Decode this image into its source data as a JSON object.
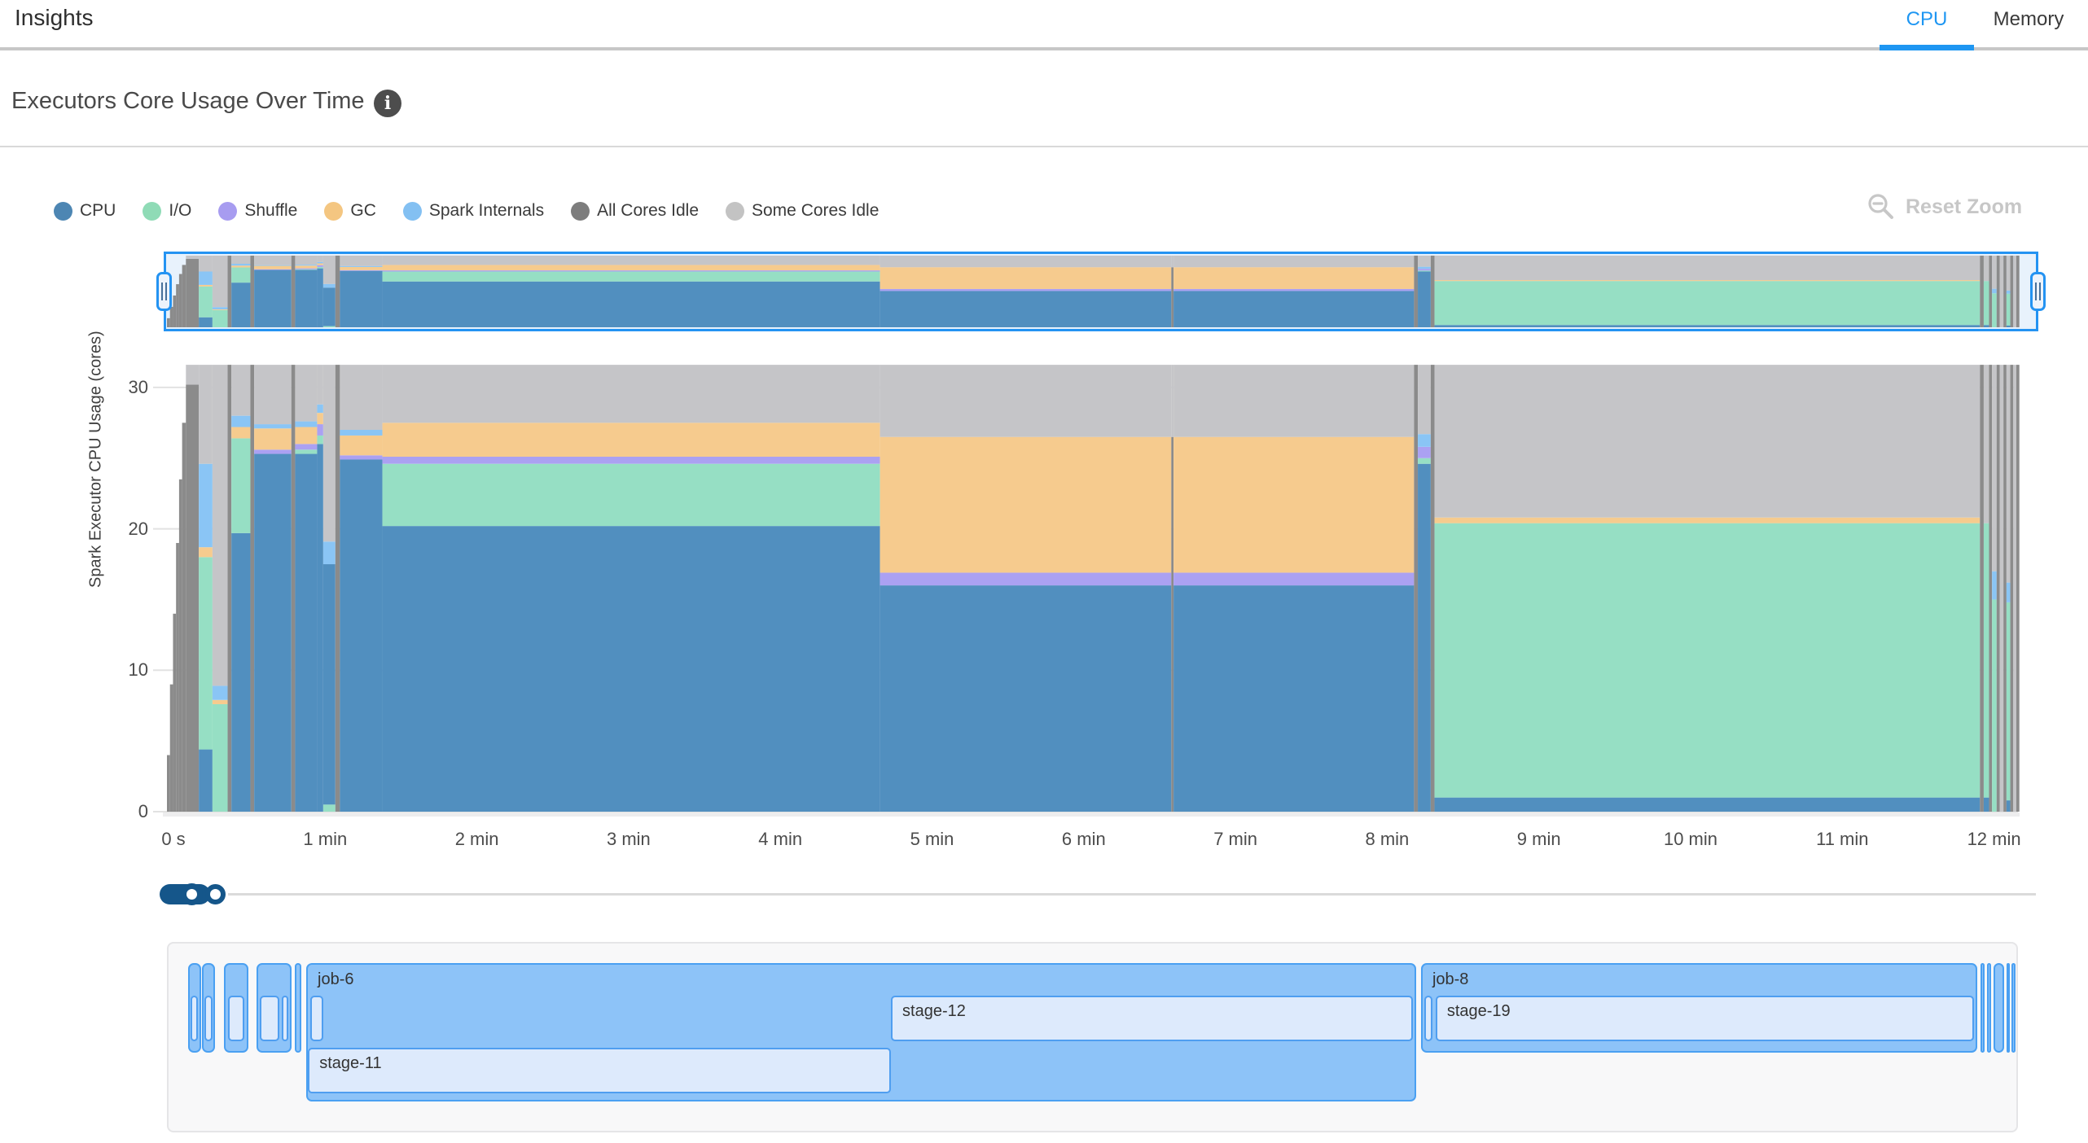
{
  "header": {
    "title": "Insights",
    "tabs": [
      {
        "label": "CPU",
        "active": true
      },
      {
        "label": "Memory",
        "active": false
      }
    ],
    "accent_color": "#1e96f2"
  },
  "section": {
    "title": "Executors Core Usage Over Time",
    "info_icon_glyph": "i"
  },
  "reset_zoom": {
    "label": "Reset Zoom",
    "color": "#c7c7c7",
    "icon": "zoom-out-icon"
  },
  "chart_data": {
    "type": "area",
    "stacked": true,
    "title": "Executors Core Usage Over Time",
    "xlabel": "",
    "ylabel": "Spark Executor CPU Usage (cores)",
    "yticks": [
      0,
      10,
      20,
      30
    ],
    "ylim": [
      0,
      32
    ],
    "x_unit": "minutes",
    "x_range_min": [
      0,
      12.21
    ],
    "grid": true,
    "legend_position": "top-left",
    "overview_brush_selection_min": [
      0,
      12.21
    ],
    "series": [
      {
        "key": "cpu",
        "label": "CPU",
        "color": "#4d86b3",
        "area_color": "#518fbf"
      },
      {
        "key": "io",
        "label": "I/O",
        "color": "#8fdbb6",
        "area_color": "#96dfc4"
      },
      {
        "key": "shuffle",
        "label": "Shuffle",
        "color": "#a79cf0",
        "area_color": "#aba1f2"
      },
      {
        "key": "gc",
        "label": "GC",
        "color": "#f4c681",
        "area_color": "#f6cb8e"
      },
      {
        "key": "si",
        "label": "Spark Internals",
        "color": "#83c0f2",
        "area_color": "#8ac5f5"
      },
      {
        "key": "allIdle",
        "label": "All Cores Idle",
        "color": "#7d7d7d",
        "area_color": "#8b8b8b"
      },
      {
        "key": "someIdle",
        "label": "Some Cores Idle",
        "color": "#c3c3c3",
        "area_color": "#c5c5c8"
      }
    ],
    "xticks": [
      {
        "t": 0,
        "label": "0 s"
      },
      {
        "t": 1,
        "label": "1 min"
      },
      {
        "t": 2,
        "label": "2 min"
      },
      {
        "t": 3,
        "label": "3 min"
      },
      {
        "t": 4,
        "label": "4 min"
      },
      {
        "t": 5,
        "label": "5 min"
      },
      {
        "t": 6,
        "label": "6 min"
      },
      {
        "t": 7,
        "label": "7 min"
      },
      {
        "t": 8,
        "label": "8 min"
      },
      {
        "t": 9,
        "label": "9 min"
      },
      {
        "t": 10,
        "label": "10 min"
      },
      {
        "t": 11,
        "label": "11 min"
      },
      {
        "t": 12,
        "label": "12 min"
      }
    ],
    "segments": [
      {
        "t0": 0.0,
        "t1": 0.02,
        "parts": [
          [
            "allIdle",
            4
          ]
        ]
      },
      {
        "t0": 0.02,
        "t1": 0.04,
        "parts": [
          [
            "allIdle",
            9
          ]
        ]
      },
      {
        "t0": 0.04,
        "t1": 0.06,
        "parts": [
          [
            "allIdle",
            14
          ]
        ]
      },
      {
        "t0": 0.06,
        "t1": 0.08,
        "parts": [
          [
            "allIdle",
            19
          ]
        ]
      },
      {
        "t0": 0.08,
        "t1": 0.1,
        "parts": [
          [
            "allIdle",
            23.5
          ]
        ]
      },
      {
        "t0": 0.1,
        "t1": 0.125,
        "parts": [
          [
            "allIdle",
            27.5
          ]
        ]
      },
      {
        "t0": 0.125,
        "t1": 0.21,
        "parts": [
          [
            "allIdle",
            30.2
          ],
          [
            "someIdle",
            1.4
          ]
        ]
      },
      {
        "t0": 0.21,
        "t1": 0.3,
        "parts": [
          [
            "cpu",
            4.4
          ],
          [
            "io",
            13.6
          ],
          [
            "gc",
            0.7
          ],
          [
            "si",
            5.9
          ],
          [
            "someIdle",
            7.0
          ]
        ]
      },
      {
        "t0": 0.3,
        "t1": 0.4,
        "parts": [
          [
            "io",
            7.6
          ],
          [
            "gc",
            0.3
          ],
          [
            "si",
            1.0
          ],
          [
            "someIdle",
            22.7
          ]
        ]
      },
      {
        "t0": 0.4,
        "t1": 0.425,
        "parts": [
          [
            "allIdle",
            31.6
          ]
        ]
      },
      {
        "t0": 0.425,
        "t1": 0.55,
        "parts": [
          [
            "cpu",
            19.7
          ],
          [
            "io",
            6.7
          ],
          [
            "gc",
            0.8
          ],
          [
            "si",
            0.8
          ],
          [
            "someIdle",
            3.6
          ]
        ]
      },
      {
        "t0": 0.55,
        "t1": 0.575,
        "parts": [
          [
            "allIdle",
            31.6
          ]
        ]
      },
      {
        "t0": 0.575,
        "t1": 0.82,
        "parts": [
          [
            "cpu",
            25.3
          ],
          [
            "shuffle",
            0.3
          ],
          [
            "gc",
            1.5
          ],
          [
            "si",
            0.3
          ],
          [
            "someIdle",
            4.2
          ]
        ]
      },
      {
        "t0": 0.82,
        "t1": 0.845,
        "parts": [
          [
            "allIdle",
            31.6
          ]
        ]
      },
      {
        "t0": 0.845,
        "t1": 0.99,
        "parts": [
          [
            "cpu",
            25.3
          ],
          [
            "io",
            0.3
          ],
          [
            "shuffle",
            0.4
          ],
          [
            "gc",
            1.2
          ],
          [
            "si",
            0.4
          ],
          [
            "someIdle",
            4.0
          ]
        ]
      },
      {
        "t0": 0.99,
        "t1": 1.03,
        "parts": [
          [
            "cpu",
            26.0
          ],
          [
            "io",
            0.6
          ],
          [
            "shuffle",
            0.8
          ],
          [
            "gc",
            0.8
          ],
          [
            "si",
            0.6
          ],
          [
            "someIdle",
            2.8
          ]
        ]
      },
      {
        "t0": 1.03,
        "t1": 1.11,
        "parts": [
          [
            "io",
            0.5
          ],
          [
            "cpu",
            17.0
          ],
          [
            "si",
            1.6
          ],
          [
            "someIdle",
            12.5
          ]
        ]
      },
      {
        "t0": 1.11,
        "t1": 1.14,
        "parts": [
          [
            "allIdle",
            31.6
          ]
        ]
      },
      {
        "t0": 1.14,
        "t1": 1.42,
        "parts": [
          [
            "cpu",
            24.9
          ],
          [
            "shuffle",
            0.3
          ],
          [
            "gc",
            1.4
          ],
          [
            "si",
            0.4
          ],
          [
            "someIdle",
            4.6
          ]
        ]
      },
      {
        "t0": 1.42,
        "t1": 4.7,
        "parts": [
          [
            "cpu",
            20.2
          ],
          [
            "io",
            4.4
          ],
          [
            "shuffle",
            0.5
          ],
          [
            "gc",
            2.4
          ],
          [
            "someIdle",
            4.1
          ]
        ]
      },
      {
        "t0": 4.7,
        "t1": 6.62,
        "parts": [
          [
            "cpu",
            16.0
          ],
          [
            "shuffle",
            0.9
          ],
          [
            "gc",
            9.6
          ],
          [
            "someIdle",
            5.1
          ]
        ]
      },
      {
        "t0": 6.62,
        "t1": 6.635,
        "parts": [
          [
            "allIdle",
            26.5
          ],
          [
            "someIdle",
            5.1
          ]
        ]
      },
      {
        "t0": 6.635,
        "t1": 8.22,
        "parts": [
          [
            "cpu",
            16.0
          ],
          [
            "shuffle",
            0.9
          ],
          [
            "gc",
            9.6
          ],
          [
            "someIdle",
            5.1
          ]
        ]
      },
      {
        "t0": 8.22,
        "t1": 8.245,
        "parts": [
          [
            "allIdle",
            31.6
          ]
        ]
      },
      {
        "t0": 8.245,
        "t1": 8.33,
        "parts": [
          [
            "cpu",
            24.6
          ],
          [
            "io",
            0.4
          ],
          [
            "shuffle",
            0.8
          ],
          [
            "si",
            0.9
          ],
          [
            "someIdle",
            4.9
          ]
        ]
      },
      {
        "t0": 8.33,
        "t1": 8.355,
        "parts": [
          [
            "allIdle",
            31.6
          ]
        ]
      },
      {
        "t0": 8.355,
        "t1": 11.95,
        "parts": [
          [
            "cpu",
            1.0
          ],
          [
            "io",
            19.4
          ],
          [
            "gc",
            0.4
          ],
          [
            "someIdle",
            10.8
          ]
        ]
      },
      {
        "t0": 11.95,
        "t1": 11.975,
        "parts": [
          [
            "allIdle",
            31.6
          ]
        ]
      },
      {
        "t0": 11.975,
        "t1": 12.01,
        "parts": [
          [
            "cpu",
            1.0
          ],
          [
            "io",
            19.4
          ],
          [
            "someIdle",
            11.2
          ]
        ]
      },
      {
        "t0": 12.01,
        "t1": 12.03,
        "parts": [
          [
            "allIdle",
            31.6
          ]
        ]
      },
      {
        "t0": 12.03,
        "t1": 12.06,
        "parts": [
          [
            "io",
            15.0
          ],
          [
            "si",
            2.0
          ],
          [
            "someIdle",
            14.6
          ]
        ]
      },
      {
        "t0": 12.06,
        "t1": 12.08,
        "parts": [
          [
            "allIdle",
            31.6
          ]
        ]
      },
      {
        "t0": 12.08,
        "t1": 12.105,
        "parts": [
          [
            "someIdle",
            31.6
          ]
        ]
      },
      {
        "t0": 12.105,
        "t1": 12.125,
        "parts": [
          [
            "allIdle",
            31.6
          ]
        ]
      },
      {
        "t0": 12.125,
        "t1": 12.15,
        "parts": [
          [
            "cpu",
            0.8
          ],
          [
            "io",
            14.0
          ],
          [
            "si",
            1.4
          ],
          [
            "someIdle",
            15.4
          ]
        ]
      },
      {
        "t0": 12.15,
        "t1": 12.17,
        "parts": [
          [
            "allIdle",
            31.6
          ]
        ]
      },
      {
        "t0": 12.17,
        "t1": 12.19,
        "parts": [
          [
            "someIdle",
            31.6
          ]
        ]
      },
      {
        "t0": 12.19,
        "t1": 12.21,
        "parts": [
          [
            "allIdle",
            31.6
          ]
        ]
      }
    ]
  },
  "timeline": {
    "jobs": [
      {
        "label": "",
        "t0": 0.14,
        "t1": 0.225,
        "tall": false,
        "stages": [
          {
            "label": "",
            "t0": 0.155,
            "t1": 0.205,
            "row": 1
          }
        ]
      },
      {
        "label": "",
        "t0": 0.231,
        "t1": 0.317,
        "tall": false,
        "stages": [
          {
            "label": "",
            "t0": 0.246,
            "t1": 0.3,
            "row": 1
          }
        ]
      },
      {
        "label": "",
        "t0": 0.376,
        "t1": 0.537,
        "tall": false,
        "stages": [
          {
            "label": "",
            "t0": 0.4,
            "t1": 0.51,
            "row": 1
          }
        ]
      },
      {
        "label": "",
        "t0": 0.59,
        "t1": 0.821,
        "tall": false,
        "stages": [
          {
            "label": "",
            "t0": 0.61,
            "t1": 0.74,
            "row": 1
          },
          {
            "label": "",
            "t0": 0.755,
            "t1": 0.8,
            "row": 1
          }
        ]
      },
      {
        "label": "",
        "t0": 0.843,
        "t1": 0.886,
        "tall": false,
        "stages": []
      },
      {
        "label": "job-6",
        "t0": 0.918,
        "t1": 8.233,
        "tall": true,
        "stages": [
          {
            "label": "",
            "t0": 0.945,
            "t1": 1.031,
            "row": 1
          },
          {
            "label": "stage-12",
            "t0": 4.772,
            "t1": 8.212,
            "row": 1
          },
          {
            "label": "stage-11",
            "t0": 0.93,
            "t1": 4.772,
            "row": 2
          }
        ]
      },
      {
        "label": "job-8",
        "t0": 8.266,
        "t1": 11.932,
        "tall": false,
        "stages": [
          {
            "label": "",
            "t0": 8.287,
            "t1": 8.341,
            "row": 1
          },
          {
            "label": "stage-19",
            "t0": 8.362,
            "t1": 11.911,
            "row": 1
          }
        ]
      },
      {
        "label": "",
        "t0": 11.954,
        "t1": 11.981,
        "tall": false,
        "stages": []
      },
      {
        "label": "",
        "t0": 11.997,
        "t1": 12.024,
        "tall": false,
        "stages": []
      },
      {
        "label": "",
        "t0": 12.04,
        "t1": 12.11,
        "tall": false,
        "stages": []
      },
      {
        "label": "",
        "t0": 12.126,
        "t1": 12.142,
        "tall": false,
        "stages": []
      },
      {
        "label": "",
        "t0": 12.158,
        "t1": 12.185,
        "tall": false,
        "stages": []
      }
    ]
  }
}
